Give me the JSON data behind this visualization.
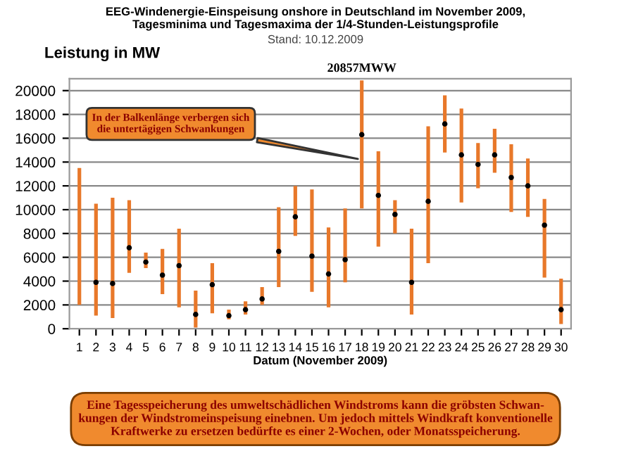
{
  "chart_data": {
    "type": "bar",
    "title": "EEG-Windenergie-Einspeisung onshore in Deutschland im November 2009,\nTagesminima und Tagesmaxima der 1/4-Stunden-Leistungsprofile",
    "subtitle": "Stand: 10.12.2009",
    "ylabel": "Leistung in MW",
    "xlabel": "Datum (November 2009)",
    "categories": [
      "1",
      "2",
      "3",
      "4",
      "5",
      "6",
      "7",
      "8",
      "9",
      "10",
      "11",
      "12",
      "13",
      "14",
      "15",
      "16",
      "17",
      "18",
      "19",
      "20",
      "21",
      "22",
      "23",
      "24",
      "25",
      "26",
      "27",
      "28",
      "29",
      "30"
    ],
    "series": [
      {
        "color": "#e8782a",
        "base": [
          2000,
          1100,
          900,
          4700,
          5100,
          2900,
          1800,
          100,
          1300,
          800,
          1200,
          2000,
          3500,
          7800,
          3100,
          1800,
          3900,
          10100,
          6900,
          8000,
          1200,
          5500,
          14800,
          10600,
          11800,
          13100,
          9800,
          9400,
          4300,
          400
        ],
        "values": [
          11500,
          9400,
          10100,
          6100,
          1300,
          3800,
          6600,
          3100,
          4200,
          800,
          1100,
          1500,
          6700,
          4200,
          8600,
          6700,
          6200,
          10757,
          8000,
          2800,
          7200,
          11500,
          4800,
          7900,
          3800,
          3700,
          5700,
          4900,
          6600,
          3800
        ]
      },
      {
        "type": "scatter",
        "color": "#000000",
        "marker": "circle",
        "values": [
          null,
          3900,
          3800,
          6800,
          5600,
          4500,
          5300,
          1200,
          3700,
          1100,
          1600,
          2500,
          6500,
          9400,
          6100,
          4600,
          5800,
          16300,
          11200,
          9600,
          3900,
          10700,
          17200,
          14600,
          13800,
          14600,
          12700,
          12000,
          8700,
          1600
        ]
      }
    ],
    "ylim": [
      0,
      21000
    ],
    "yticks": [
      0,
      2000,
      4000,
      6000,
      8000,
      10000,
      12000,
      14000,
      16000,
      18000,
      20000
    ],
    "grid": "y",
    "annotations": [
      {
        "text": "20857MWW",
        "x": "18",
        "y": 20857
      },
      {
        "text": "In der Balkenlänge verbergen sich\ndie untertägigen Schwankungen",
        "x": "18",
        "y": 14200
      },
      "Eine Tagesspeicherung des umweltschädlichen Windstroms kann die gröbsten Schwan-\nkungen der Windstromeinspeisung einebnen. Um jedoch mittels Windkraft konventionelle\nKraftwerke zu ersetzen bedürfte es einer 2-Wochen, oder Monatsspeicherung."
    ]
  }
}
